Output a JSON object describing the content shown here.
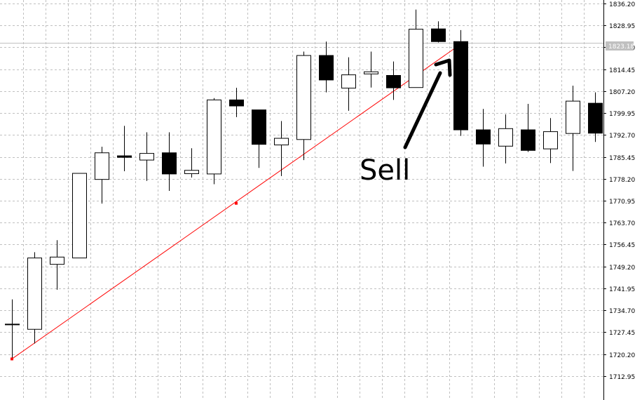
{
  "chart_data": {
    "type": "candlestick",
    "y_axis": {
      "range": [
        1709.65,
        1836.2
      ],
      "ticks": [
        "1836.20",
        "1828.95",
        "1821.70",
        "1814.45",
        "1807.20",
        "1799.95",
        "1792.70",
        "1785.45",
        "1778.20",
        "1770.95",
        "1763.70",
        "1756.45",
        "1749.20",
        "1741.95",
        "1734.70",
        "1727.45",
        "1720.20",
        "1712.95"
      ],
      "position": "right"
    },
    "grid": true,
    "candles": [
      {
        "open": 1729.9,
        "high": 1738.3,
        "low": 1719.0,
        "close": 1730.1
      },
      {
        "open": 1728.4,
        "high": 1753.9,
        "low": 1723.7,
        "close": 1752.0
      },
      {
        "open": 1749.9,
        "high": 1757.9,
        "low": 1741.5,
        "close": 1752.3
      },
      {
        "open": 1752.0,
        "high": 1780.0,
        "low": 1752.0,
        "close": 1780.0
      },
      {
        "open": 1778.0,
        "high": 1788.8,
        "low": 1770.0,
        "close": 1786.8
      },
      {
        "open": 1785.8,
        "high": 1795.7,
        "low": 1780.7,
        "close": 1785.3
      },
      {
        "open": 1784.4,
        "high": 1793.6,
        "low": 1777.5,
        "close": 1786.6
      },
      {
        "open": 1786.8,
        "high": 1793.6,
        "low": 1774.2,
        "close": 1779.8
      },
      {
        "open": 1779.9,
        "high": 1788.3,
        "low": 1778.6,
        "close": 1781.0
      },
      {
        "open": 1779.8,
        "high": 1804.9,
        "low": 1776.4,
        "close": 1804.3
      },
      {
        "open": 1804.3,
        "high": 1808.3,
        "low": 1798.6,
        "close": 1802.3
      },
      {
        "open": 1801.0,
        "high": 1801.0,
        "low": 1781.8,
        "close": 1789.6
      },
      {
        "open": 1789.4,
        "high": 1797.3,
        "low": 1779.1,
        "close": 1791.6
      },
      {
        "open": 1791.2,
        "high": 1820.3,
        "low": 1784.4,
        "close": 1819.0
      },
      {
        "open": 1819.0,
        "high": 1823.6,
        "low": 1806.8,
        "close": 1810.9
      },
      {
        "open": 1808.2,
        "high": 1818.4,
        "low": 1800.7,
        "close": 1812.6
      },
      {
        "open": 1812.9,
        "high": 1820.3,
        "low": 1808.4,
        "close": 1813.6
      },
      {
        "open": 1812.4,
        "high": 1817.0,
        "low": 1804.3,
        "close": 1808.3
      },
      {
        "open": 1808.4,
        "high": 1834.2,
        "low": 1808.4,
        "close": 1827.7
      },
      {
        "open": 1827.8,
        "high": 1830.3,
        "low": 1823.3,
        "close": 1823.6
      },
      {
        "open": 1823.6,
        "high": 1827.4,
        "low": 1792.4,
        "close": 1794.4
      },
      {
        "open": 1794.4,
        "high": 1801.3,
        "low": 1782.2,
        "close": 1789.7
      },
      {
        "open": 1789.0,
        "high": 1799.5,
        "low": 1783.3,
        "close": 1794.8
      },
      {
        "open": 1794.4,
        "high": 1803.0,
        "low": 1787.1,
        "close": 1787.6
      },
      {
        "open": 1788.1,
        "high": 1798.3,
        "low": 1783.4,
        "close": 1793.8
      },
      {
        "open": 1793.2,
        "high": 1809.0,
        "low": 1780.8,
        "close": 1803.9
      },
      {
        "open": 1803.2,
        "high": 1806.8,
        "low": 1790.4,
        "close": 1793.3
      }
    ],
    "current_price": "1823.18",
    "trendline": {
      "color": "#ff0000",
      "anchor_points": [
        {
          "candle": 0,
          "price": 1718.6
        },
        {
          "candle": 10,
          "price": 1770.1
        },
        {
          "candle": 20,
          "price": 1822.7
        }
      ]
    },
    "annotation": {
      "text": "Sell",
      "points_to_candle": 20
    }
  },
  "colors": {
    "grid": "#c0c0c0",
    "axis": "#000000",
    "bull_fill": "#ffffff",
    "bear_fill": "#000000",
    "price_line": "#c0c0c0",
    "price_tag_bg": "#c0c0c0"
  }
}
